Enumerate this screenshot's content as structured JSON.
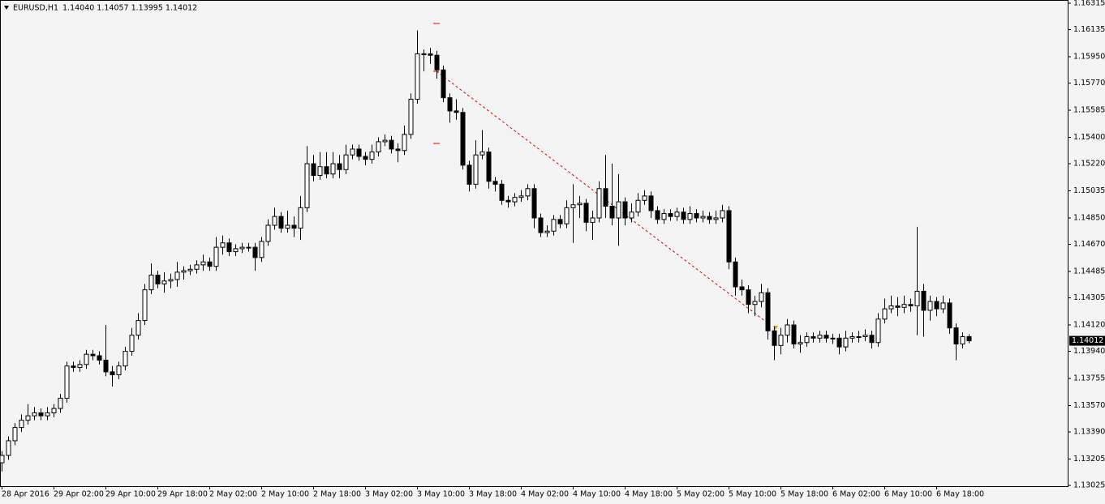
{
  "chart_data": {
    "type": "candlestick",
    "title": "EURUSD,H1",
    "header_values": "1.14040 1.14057 1.13995 1.14012",
    "categories": [
      "28 Apr 2016",
      null,
      null,
      null,
      null,
      null,
      null,
      null,
      "29 Apr 02:00",
      null,
      null,
      null,
      null,
      null,
      null,
      null,
      "29 Apr 10:00",
      null,
      null,
      null,
      null,
      null,
      null,
      null,
      "29 Apr 18:00",
      null,
      null,
      null,
      null,
      null,
      null,
      null,
      "2 May 02:00",
      null,
      null,
      null,
      null,
      null,
      null,
      null,
      "2 May 10:00",
      null,
      null,
      null,
      null,
      null,
      null,
      null,
      "2 May 18:00",
      null,
      null,
      null,
      null,
      null,
      null,
      null,
      "3 May 02:00",
      null,
      null,
      null,
      null,
      null,
      null,
      null,
      "3 May 10:00",
      null,
      null,
      null,
      null,
      null,
      null,
      null,
      "3 May 18:00",
      null,
      null,
      null,
      null,
      null,
      null,
      null,
      "4 May 02:00",
      null,
      null,
      null,
      null,
      null,
      null,
      null,
      "4 May 10:00",
      null,
      null,
      null,
      null,
      null,
      null,
      null,
      "4 May 18:00",
      null,
      null,
      null,
      null,
      null,
      null,
      null,
      "5 May 02:00",
      null,
      null,
      null,
      null,
      null,
      null,
      null,
      "5 May 10:00",
      null,
      null,
      null,
      null,
      null,
      null,
      null,
      "5 May 18:00",
      null,
      null,
      null,
      null,
      null,
      null,
      null,
      "6 May 02:00",
      null,
      null,
      null,
      null,
      null,
      null,
      null,
      "6 May 10:00",
      null,
      null,
      null,
      null,
      null,
      null,
      null,
      "6 May 18:00",
      null,
      null,
      null,
      null,
      null
    ],
    "open": [
      1.1318,
      1.1323,
      1.1333,
      1.1342,
      1.1347,
      1.135,
      1.1352,
      1.135,
      1.1352,
      1.1355,
      1.1362,
      1.1384,
      1.1383,
      1.1385,
      1.1392,
      1.1391,
      1.1388,
      1.138,
      1.1378,
      1.1384,
      1.1394,
      1.1405,
      1.1415,
      1.1436,
      1.1446,
      1.144,
      1.1442,
      1.1443,
      1.1448,
      1.1449,
      1.145,
      1.1453,
      1.1455,
      1.1452,
      1.1465,
      1.1468,
      1.1462,
      1.1464,
      1.1465,
      1.1465,
      1.1458,
      1.1469,
      1.148,
      1.1486,
      1.1478,
      1.148,
      1.1478,
      1.1492,
      1.1522,
      1.1514,
      1.152,
      1.1515,
      1.1522,
      1.1518,
      1.1528,
      1.1532,
      1.1527,
      1.1525,
      1.153,
      1.1537,
      1.1538,
      1.1532,
      1.1531,
      1.1542,
      1.1566,
      1.1597,
      1.1597,
      1.1596,
      1.1586,
      1.1567,
      1.1558,
      1.1557,
      1.1521,
      1.1508,
      1.1528,
      1.153,
      1.151,
      1.1508,
      1.1497,
      1.1496,
      1.1499,
      1.15,
      1.1505,
      1.1485,
      1.1475,
      1.1476,
      1.1484,
      1.1481,
      1.1492,
      1.1494,
      1.1495,
      1.1482,
      1.1485,
      1.1505,
      1.1493,
      1.1485,
      1.1496,
      1.1485,
      1.1489,
      1.1497,
      1.15,
      1.149,
      1.1484,
      1.1488,
      1.1486,
      1.1489,
      1.1484,
      1.1488,
      1.1485,
      1.1486,
      1.1484,
      1.1485,
      1.149,
      1.1455,
      1.1438,
      1.1436,
      1.1426,
      1.1428,
      1.1434,
      1.1408,
      1.1398,
      1.1405,
      1.1412,
      1.1399,
      1.14,
      1.1404,
      1.1403,
      1.1405,
      1.1403,
      1.1403,
      1.1397,
      1.1403,
      1.1404,
      1.1404,
      1.1405,
      1.14,
      1.1416,
      1.1423,
      1.1425,
      1.1424,
      1.1426,
      1.1425,
      1.1435,
      1.1422,
      1.1428,
      1.1423,
      1.1427,
      1.141,
      1.1399,
      1.1404
    ],
    "high": [
      1.1326,
      1.1336,
      1.1345,
      1.1351,
      1.1358,
      1.1356,
      1.1355,
      1.1356,
      1.1358,
      1.1365,
      1.1387,
      1.1387,
      1.1388,
      1.1395,
      1.1395,
      1.1394,
      1.1412,
      1.1384,
      1.1387,
      1.1397,
      1.141,
      1.142,
      1.144,
      1.1454,
      1.1449,
      1.1448,
      1.1447,
      1.1455,
      1.1452,
      1.1453,
      1.1456,
      1.146,
      1.1458,
      1.1472,
      1.1473,
      1.1471,
      1.1467,
      1.1468,
      1.1468,
      1.1468,
      1.1472,
      1.1484,
      1.1492,
      1.1489,
      1.149,
      1.1486,
      1.15,
      1.1534,
      1.1528,
      1.153,
      1.153,
      1.153,
      1.1528,
      1.1535,
      1.1535,
      1.1535,
      1.153,
      1.1535,
      1.154,
      1.1542,
      1.1541,
      1.1536,
      1.1548,
      1.157,
      1.1613,
      1.16,
      1.1601,
      1.1599,
      1.1589,
      1.157,
      1.1566,
      1.156,
      1.1524,
      1.1538,
      1.1545,
      1.1533,
      1.1513,
      1.1511,
      1.15,
      1.1502,
      1.1504,
      1.1508,
      1.1508,
      1.1488,
      1.148,
      1.1487,
      1.1487,
      1.1497,
      1.1508,
      1.15,
      1.1498,
      1.149,
      1.151,
      1.1528,
      1.1522,
      1.1515,
      1.1499,
      1.1495,
      1.1502,
      1.1504,
      1.1503,
      1.1493,
      1.1491,
      1.1491,
      1.1492,
      1.1492,
      1.1493,
      1.1491,
      1.149,
      1.1489,
      1.149,
      1.1494,
      1.1493,
      1.1458,
      1.1443,
      1.1439,
      1.1432,
      1.144,
      1.1437,
      1.1411,
      1.141,
      1.1416,
      1.1415,
      1.1405,
      1.1407,
      1.1407,
      1.1408,
      1.1408,
      1.1406,
      1.1406,
      1.1408,
      1.1407,
      1.1408,
      1.1409,
      1.1408,
      1.142,
      1.143,
      1.1432,
      1.1431,
      1.1432,
      1.143,
      1.1479,
      1.144,
      1.1432,
      1.1431,
      1.1432,
      1.143,
      1.1413,
      1.1407,
      1.14057
    ],
    "low": [
      1.1312,
      1.132,
      1.133,
      1.1339,
      1.1344,
      1.1347,
      1.1347,
      1.1347,
      1.1349,
      1.1352,
      1.1359,
      1.138,
      1.138,
      1.1382,
      1.1388,
      1.1385,
      1.1377,
      1.137,
      1.1375,
      1.1381,
      1.1391,
      1.1402,
      1.1412,
      1.1433,
      1.1437,
      1.1434,
      1.1437,
      1.1438,
      1.1443,
      1.1446,
      1.1447,
      1.1449,
      1.1449,
      1.1449,
      1.146,
      1.1459,
      1.1459,
      1.1461,
      1.1462,
      1.1449,
      1.1455,
      1.1466,
      1.1477,
      1.1475,
      1.1475,
      1.1472,
      1.147,
      1.1489,
      1.151,
      1.1511,
      1.1512,
      1.1512,
      1.1512,
      1.1515,
      1.1525,
      1.1524,
      1.1521,
      1.1522,
      1.1527,
      1.1534,
      1.1529,
      1.1523,
      1.1528,
      1.1539,
      1.1563,
      1.1585,
      1.159,
      1.158,
      1.1564,
      1.155,
      1.1552,
      1.1518,
      1.1503,
      1.1505,
      1.1525,
      1.1505,
      1.1503,
      1.1494,
      1.1492,
      1.1493,
      1.1496,
      1.1497,
      1.1478,
      1.1472,
      1.1472,
      1.1473,
      1.1478,
      1.1478,
      1.1468,
      1.1485,
      1.1476,
      1.147,
      1.1482,
      1.1485,
      1.148,
      1.1466,
      1.148,
      1.1482,
      1.1486,
      1.1494,
      1.1485,
      1.1481,
      1.1481,
      1.1483,
      1.1483,
      1.1481,
      1.1481,
      1.1482,
      1.1482,
      1.1481,
      1.1481,
      1.1482,
      1.145,
      1.1432,
      1.1432,
      1.142,
      1.1418,
      1.1424,
      1.1402,
      1.1388,
      1.1392,
      1.14,
      1.1396,
      1.1393,
      1.1397,
      1.14,
      1.14,
      1.14,
      1.1399,
      1.1392,
      1.1394,
      1.14,
      1.14,
      1.1401,
      1.1396,
      1.1397,
      1.1413,
      1.142,
      1.1418,
      1.142,
      1.1421,
      1.1405,
      1.1404,
      1.1415,
      1.1418,
      1.142,
      1.1406,
      1.1388,
      1.1396,
      1.13995
    ],
    "close": [
      1.1323,
      1.1333,
      1.1342,
      1.1347,
      1.135,
      1.1352,
      1.135,
      1.1352,
      1.1355,
      1.1362,
      1.1384,
      1.1383,
      1.1385,
      1.1392,
      1.1391,
      1.1388,
      1.138,
      1.1378,
      1.1384,
      1.1394,
      1.1405,
      1.1415,
      1.1436,
      1.1446,
      1.144,
      1.1442,
      1.1443,
      1.1448,
      1.1449,
      1.145,
      1.1453,
      1.1455,
      1.1452,
      1.1465,
      1.1468,
      1.1462,
      1.1464,
      1.1465,
      1.1465,
      1.1458,
      1.1469,
      1.148,
      1.1486,
      1.1478,
      1.148,
      1.1478,
      1.1492,
      1.1522,
      1.1514,
      1.152,
      1.1515,
      1.1522,
      1.1518,
      1.1528,
      1.1532,
      1.1527,
      1.1525,
      1.153,
      1.1537,
      1.1538,
      1.1532,
      1.1531,
      1.1542,
      1.1566,
      1.1597,
      1.1597,
      1.1596,
      1.1586,
      1.1567,
      1.1558,
      1.1557,
      1.1521,
      1.1508,
      1.1528,
      1.153,
      1.151,
      1.1508,
      1.1497,
      1.1496,
      1.1499,
      1.15,
      1.1505,
      1.1485,
      1.1475,
      1.1476,
      1.1484,
      1.1481,
      1.1492,
      1.1494,
      1.1495,
      1.1482,
      1.1485,
      1.1505,
      1.1493,
      1.1485,
      1.1496,
      1.1485,
      1.1489,
      1.1497,
      1.15,
      1.149,
      1.1484,
      1.1488,
      1.1486,
      1.1489,
      1.1484,
      1.1488,
      1.1485,
      1.1486,
      1.1484,
      1.1485,
      1.149,
      1.1455,
      1.1438,
      1.1436,
      1.1426,
      1.1428,
      1.1434,
      1.1408,
      1.1398,
      1.1405,
      1.1412,
      1.1399,
      1.14,
      1.1404,
      1.1403,
      1.1405,
      1.1403,
      1.1403,
      1.1397,
      1.1403,
      1.1404,
      1.1404,
      1.1405,
      1.14,
      1.1416,
      1.1423,
      1.1425,
      1.1424,
      1.1426,
      1.1425,
      1.1435,
      1.1422,
      1.1428,
      1.1423,
      1.1427,
      1.141,
      1.1399,
      1.1404,
      1.14012
    ],
    "up_color": "#ffffff",
    "down_color": "#000000",
    "line_color": "#000000",
    "ylim": [
      1.1302,
      1.16337
    ],
    "yticks": [
      1.16315,
      1.16135,
      {
        "value": 1.1595,
        "label": "1.15950"
      },
      {
        "value": 1.1577,
        "label": "1.15770"
      },
      1.15585,
      {
        "value": 1.154,
        "label": "1.15400"
      },
      {
        "value": 1.1522,
        "label": "1.15220"
      },
      1.15035,
      {
        "value": 1.1485,
        "label": "1.14850"
      },
      {
        "value": 1.1467,
        "label": "1.14670"
      },
      1.14485,
      1.14305,
      {
        "value": 1.1412,
        "label": "1.14120"
      },
      {
        "value": 1.1394,
        "label": "1.13940"
      },
      1.13755,
      {
        "value": 1.1357,
        "label": "1.13570"
      },
      {
        "value": 1.1339,
        "label": "1.13390"
      },
      1.13205,
      1.13025
    ],
    "current_price": 1.14012,
    "grid": false
  }
}
